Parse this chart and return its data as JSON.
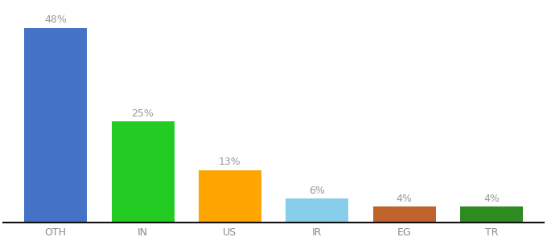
{
  "categories": [
    "OTH",
    "IN",
    "US",
    "IR",
    "EG",
    "TR"
  ],
  "values": [
    48,
    25,
    13,
    6,
    4,
    4
  ],
  "labels": [
    "48%",
    "25%",
    "13%",
    "6%",
    "4%",
    "4%"
  ],
  "bar_colors": [
    "#4472C4",
    "#22CC22",
    "#FFA500",
    "#87CEEB",
    "#C0622B",
    "#2E8B22"
  ],
  "ylim": [
    0,
    54
  ],
  "background_color": "#ffffff",
  "label_fontsize": 9,
  "tick_fontsize": 9,
  "label_color": "#999999",
  "tick_color": "#888888",
  "bar_width": 0.72
}
